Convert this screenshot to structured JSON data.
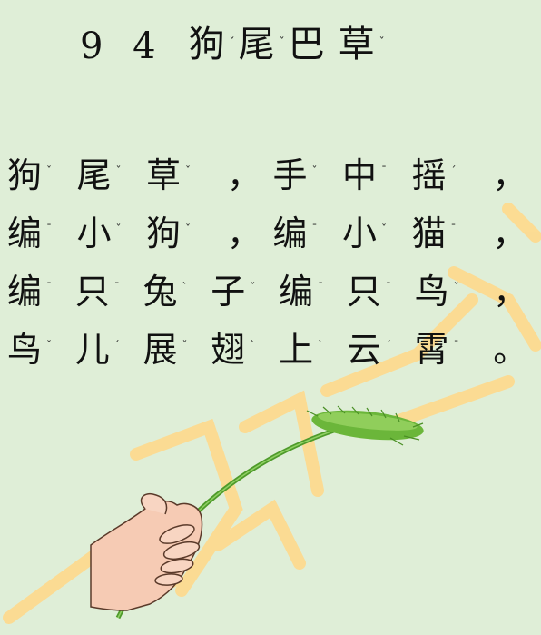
{
  "title": {
    "number": "9 4",
    "units": [
      {
        "char": "狗",
        "pinyin": "ˇ",
        "pic": "dog-face"
      },
      {
        "char": "尾",
        "pinyin": "ˇ",
        "pic": "tail"
      },
      {
        "char": "巴",
        "pinyin": "",
        "pic": "snake"
      },
      {
        "char": "草",
        "pinyin": "ˇ",
        "pic": "grass"
      }
    ]
  },
  "poem": {
    "lines": [
      [
        {
          "char": "狗",
          "pinyin": "ˇ",
          "pic": "dog-face"
        },
        {
          "char": "尾",
          "pinyin": "ˇ",
          "pic": "tail"
        },
        {
          "char": "草",
          "pinyin": "ˇ",
          "pic": "grass"
        },
        {
          "char": "，",
          "pinyin": "",
          "pic": ""
        },
        {
          "char": "手",
          "pinyin": "ˇ",
          "pic": ""
        },
        {
          "char": "中",
          "pinyin": "¯",
          "pic": "target"
        },
        {
          "char": "摇",
          "pinyin": "ˊ",
          "pic": "swirl"
        },
        {
          "char": "，",
          "pinyin": "",
          "pic": ""
        }
      ],
      [
        {
          "char": "编",
          "pinyin": "¯",
          "pic": "knot"
        },
        {
          "char": "小",
          "pinyin": "ˇ",
          "pic": "smile"
        },
        {
          "char": "狗",
          "pinyin": "ˇ",
          "pic": "dog-face"
        },
        {
          "char": "，",
          "pinyin": "",
          "pic": ""
        },
        {
          "char": "编",
          "pinyin": "¯",
          "pic": "knot"
        },
        {
          "char": "小",
          "pinyin": "ˇ",
          "pic": "smile"
        },
        {
          "char": "猫",
          "pinyin": "¯",
          "pic": "lines"
        },
        {
          "char": "，",
          "pinyin": "",
          "pic": ""
        }
      ],
      [
        {
          "char": "编",
          "pinyin": "¯",
          "pic": "knot"
        },
        {
          "char": "只",
          "pinyin": "¯",
          "pic": "dot"
        },
        {
          "char": "兔",
          "pinyin": "ˋ",
          "pic": "rabbit"
        },
        {
          "char": "子",
          "pinyin": "ˇ",
          "pic": "person"
        },
        {
          "char": "编",
          "pinyin": "¯",
          "pic": "knot"
        },
        {
          "char": "只",
          "pinyin": "¯",
          "pic": "dot"
        },
        {
          "char": "鸟",
          "pinyin": "ˇ",
          "pic": "bird"
        },
        {
          "char": "，",
          "pinyin": "",
          "pic": ""
        }
      ],
      [
        {
          "char": "鸟",
          "pinyin": "ˇ",
          "pic": "bird"
        },
        {
          "char": "儿",
          "pinyin": "ˊ",
          "pic": "ear"
        },
        {
          "char": "展",
          "pinyin": "ˇ",
          "pic": "standing-man"
        },
        {
          "char": "翅",
          "pinyin": "ˋ",
          "pic": "box"
        },
        {
          "char": "上",
          "pinyin": "ˋ",
          "pic": "up-arrow"
        },
        {
          "char": "云",
          "pinyin": "ˊ",
          "pic": "cloud"
        },
        {
          "char": "霄",
          "pinyin": "¯",
          "pic": "lines"
        },
        {
          "char": "。",
          "pinyin": "",
          "pic": ""
        }
      ]
    ]
  },
  "colors": {
    "background": "#dfeed7",
    "watermark": "#ffd27a",
    "grass": "#5aa02c",
    "skin": "#f6cbb4"
  }
}
